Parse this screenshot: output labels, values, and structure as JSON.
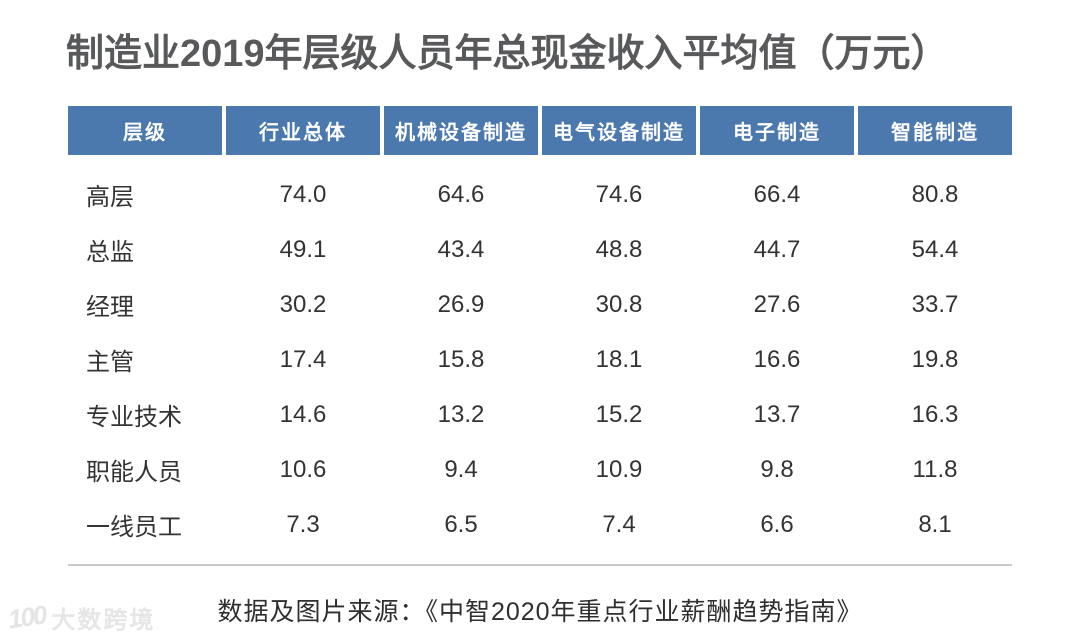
{
  "title": "制造业2019年层级人员年总现金收入平均值（万元）",
  "table": {
    "headers": [
      "层级",
      "行业总体",
      "机械设备制造",
      "电气设备制造",
      "电子制造",
      "智能制造"
    ],
    "rows": [
      {
        "label": "高层",
        "values": [
          "74.0",
          "64.6",
          "74.6",
          "66.4",
          "80.8"
        ]
      },
      {
        "label": "总监",
        "values": [
          "49.1",
          "43.4",
          "48.8",
          "44.7",
          "54.4"
        ]
      },
      {
        "label": "经理",
        "values": [
          "30.2",
          "26.9",
          "30.8",
          "27.6",
          "33.7"
        ]
      },
      {
        "label": "主管",
        "values": [
          "17.4",
          "15.8",
          "18.1",
          "16.6",
          "19.8"
        ]
      },
      {
        "label": "专业技术",
        "values": [
          "14.6",
          "13.2",
          "15.2",
          "13.7",
          "16.3"
        ]
      },
      {
        "label": "职能人员",
        "values": [
          "10.6",
          "9.4",
          "10.9",
          "9.8",
          "11.8"
        ]
      },
      {
        "label": "一线员工",
        "values": [
          "7.3",
          "6.5",
          "7.4",
          "6.6",
          "8.1"
        ]
      }
    ]
  },
  "footer": {
    "source_text": "数据及图片来源：《中智2020年重点行业薪酬趋势指南》"
  },
  "watermark": {
    "logo_text": "100",
    "brand_text": "大数跨境"
  },
  "colors": {
    "header_bg": "#4B79AE",
    "title_text": "#58595B",
    "body_text": "#333333",
    "divider": "#C9C9C9",
    "watermark": "#E4E4E4"
  },
  "chart_data": {
    "type": "table",
    "title": "制造业2019年层级人员年总现金收入平均值（万元）",
    "unit": "万元",
    "row_header": "层级",
    "categories": [
      "高层",
      "总监",
      "经理",
      "主管",
      "专业技术",
      "职能人员",
      "一线员工"
    ],
    "series": [
      {
        "name": "行业总体",
        "values": [
          74.0,
          49.1,
          30.2,
          17.4,
          14.6,
          10.6,
          7.3
        ]
      },
      {
        "name": "机械设备制造",
        "values": [
          64.6,
          43.4,
          26.9,
          15.8,
          13.2,
          9.4,
          6.5
        ]
      },
      {
        "name": "电气设备制造",
        "values": [
          74.6,
          48.8,
          30.8,
          18.1,
          15.2,
          10.9,
          7.4
        ]
      },
      {
        "name": "电子制造",
        "values": [
          66.4,
          44.7,
          27.6,
          16.6,
          13.7,
          9.8,
          6.6
        ]
      },
      {
        "name": "智能制造",
        "values": [
          80.8,
          54.4,
          33.7,
          19.8,
          16.3,
          11.8,
          8.1
        ]
      }
    ],
    "legend_position": "none",
    "grid": false,
    "source": "数据及图片来源：《中智2020年重点行业薪酬趋势指南》"
  }
}
